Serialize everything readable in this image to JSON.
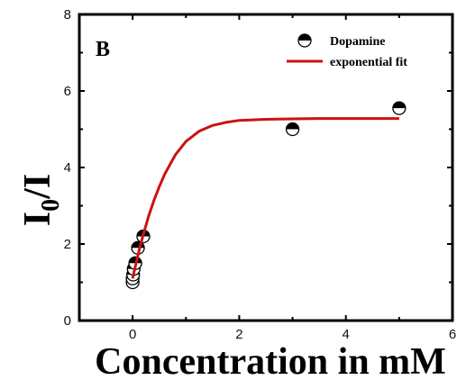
{
  "chart_data": {
    "type": "scatter",
    "panel_label": "B",
    "xlabel": "Concentration  in mM",
    "ylabel_main": "I",
    "ylabel_sub": "0",
    "ylabel_tail": "/I",
    "xlim": [
      -1,
      6
    ],
    "ylim": [
      0,
      8
    ],
    "xticks": [
      0,
      2,
      4,
      6
    ],
    "yticks": [
      0,
      2,
      4,
      6,
      8
    ],
    "grid": false,
    "legend_position": "top-right",
    "series": [
      {
        "name": "Dopamine",
        "kind": "points",
        "marker": "half-filled circle",
        "color": "#000000",
        "x": [
          0.0,
          0.0,
          0.01,
          0.02,
          0.05,
          0.1,
          0.2,
          3.0,
          5.0
        ],
        "y": [
          1.0,
          1.1,
          1.2,
          1.35,
          1.5,
          1.9,
          2.2,
          5.0,
          5.55
        ]
      },
      {
        "name": "exponential fit",
        "kind": "line",
        "color": "#cc1111",
        "x": [
          0.0,
          0.05,
          0.1,
          0.15,
          0.2,
          0.3,
          0.4,
          0.5,
          0.6,
          0.8,
          1.0,
          1.25,
          1.5,
          1.75,
          2.0,
          2.5,
          3.0,
          3.5,
          4.0,
          4.5,
          5.0
        ],
        "y": [
          1.1,
          1.41,
          1.71,
          1.99,
          2.25,
          2.73,
          3.14,
          3.5,
          3.82,
          4.33,
          4.68,
          4.95,
          5.1,
          5.18,
          5.23,
          5.26,
          5.27,
          5.28,
          5.28,
          5.28,
          5.28
        ]
      }
    ]
  }
}
